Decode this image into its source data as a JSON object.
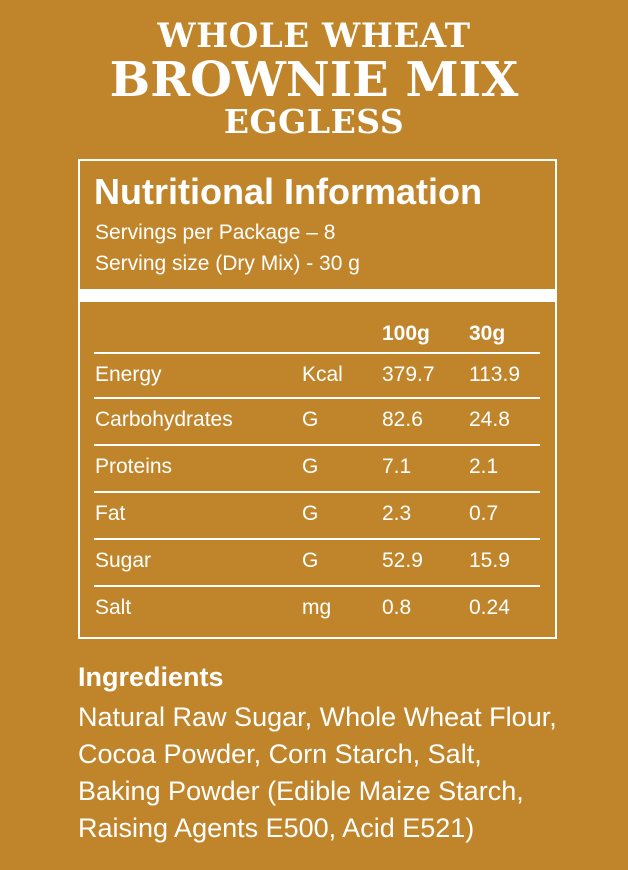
{
  "header": {
    "line1": "WHOLE WHEAT",
    "line2": "BROWNIE MIX",
    "line3": "EGGLESS"
  },
  "nutrition": {
    "title": "Nutritional Information",
    "servings_per_package": "Servings per Package – 8",
    "serving_size": "Serving size (Dry Mix) - 30 g",
    "columns": [
      "100g",
      "30g"
    ],
    "rows": [
      {
        "name": "Energy",
        "unit": "Kcal",
        "per_100g": "379.7",
        "per_30g": "113.9"
      },
      {
        "name": "Carbohydrates",
        "unit": "G",
        "per_100g": "82.6",
        "per_30g": "24.8"
      },
      {
        "name": "Proteins",
        "unit": "G",
        "per_100g": "7.1",
        "per_30g": "2.1"
      },
      {
        "name": "Fat",
        "unit": "G",
        "per_100g": "2.3",
        "per_30g": "0.7"
      },
      {
        "name": "Sugar",
        "unit": "G",
        "per_100g": "52.9",
        "per_30g": "15.9"
      },
      {
        "name": "Salt",
        "unit": "mg",
        "per_100g": "0.8",
        "per_30g": "0.24"
      }
    ]
  },
  "ingredients": {
    "title": "Ingredients",
    "lines": [
      "Natural Raw Sugar, Whole Wheat Flour,",
      "Cocoa Powder, Corn Starch, Salt,",
      "Baking Powder (Edible Maize Starch,",
      "Raising Agents E500, Acid E521)"
    ]
  },
  "colors": {
    "background": "#c0852b",
    "text": "#ffffff"
  }
}
